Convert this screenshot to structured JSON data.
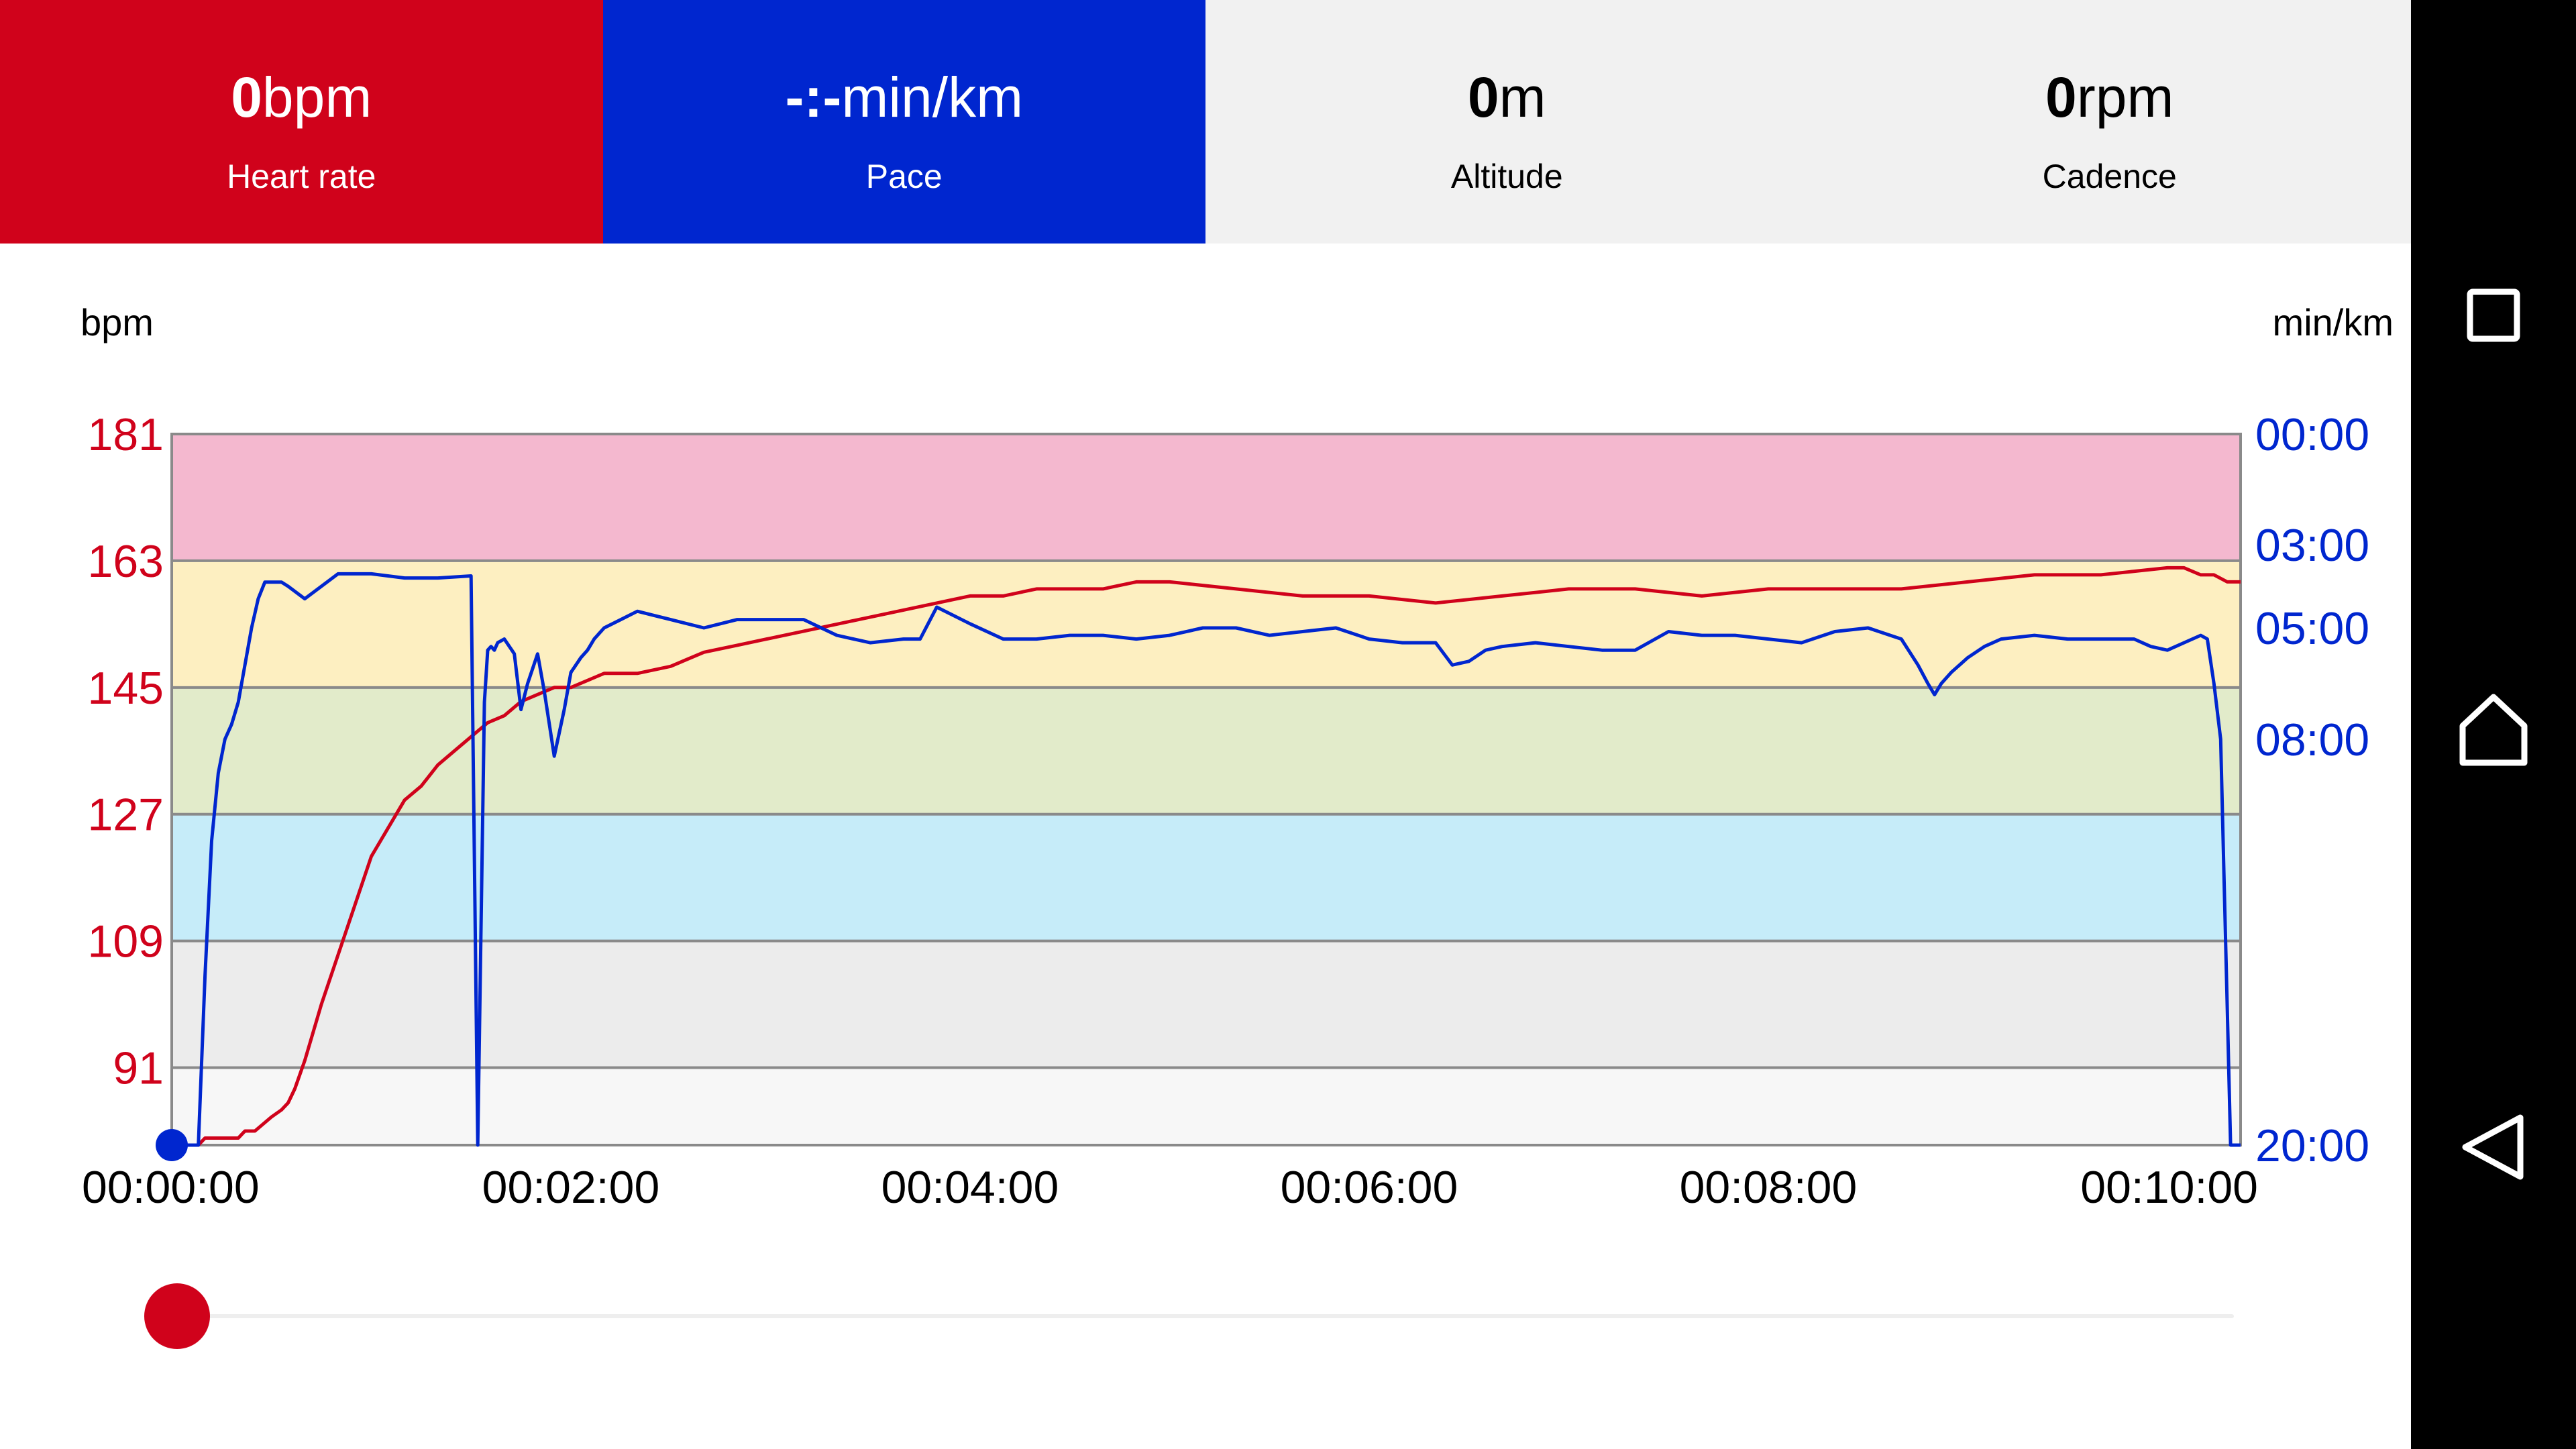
{
  "stats": {
    "heart_rate": {
      "value": "0",
      "unit": "bpm",
      "label": "Heart rate"
    },
    "pace": {
      "value": "-:-",
      "unit": "min/km",
      "label": "Pace"
    },
    "altitude": {
      "value": "0",
      "unit": "m",
      "label": "Altitude"
    },
    "cadence": {
      "value": "0",
      "unit": "rpm",
      "label": "Cadence"
    }
  },
  "colors": {
    "heart_rate": "#d0021b",
    "pace": "#0026cf",
    "zone_5": "#f4b8cf",
    "zone_4": "#fdefc1",
    "zone_3": "#e2ebca",
    "zone_2": "#c6ecf9",
    "zone_1": "#ececec",
    "zone_0": "#f7f7f7"
  },
  "chart_data": {
    "type": "line",
    "left_axis_unit": "bpm",
    "right_axis_unit": "min/km",
    "left_ticks": [
      "181",
      "163",
      "145",
      "127",
      "109",
      "91"
    ],
    "right_ticks": [
      "00:00",
      "03:00",
      "05:00",
      "08:00",
      "20:00"
    ],
    "x_ticks": [
      "00:00:00",
      "00:02:00",
      "00:04:00",
      "00:06:00",
      "00:08:00",
      "00:10:00"
    ],
    "xlim_seconds": [
      0,
      622
    ],
    "ylim_bpm": [
      80,
      181
    ],
    "zones_bpm": [
      181,
      163,
      145,
      127,
      109,
      91
    ],
    "series": [
      {
        "name": "Heart rate",
        "unit": "bpm",
        "x_seconds": [
          0,
          8,
          10,
          15,
          20,
          22,
          25,
          30,
          33,
          35,
          37,
          40,
          45,
          50,
          55,
          60,
          65,
          70,
          75,
          80,
          85,
          90,
          95,
          100,
          105,
          110,
          115,
          120,
          125,
          130,
          135,
          140,
          150,
          160,
          170,
          180,
          190,
          200,
          210,
          220,
          230,
          240,
          250,
          260,
          270,
          280,
          290,
          300,
          320,
          340,
          360,
          380,
          400,
          420,
          440,
          460,
          480,
          500,
          520,
          540,
          560,
          580,
          600,
          605,
          610,
          614,
          618,
          622
        ],
        "y": [
          80,
          80,
          81,
          81,
          81,
          82,
          82,
          84,
          85,
          86,
          88,
          92,
          100,
          107,
          114,
          121,
          125,
          129,
          131,
          134,
          136,
          138,
          140,
          141,
          143,
          144,
          145,
          145,
          146,
          147,
          147,
          147,
          148,
          150,
          151,
          152,
          153,
          154,
          155,
          156,
          157,
          158,
          158,
          159,
          159,
          159,
          160,
          160,
          159,
          158,
          158,
          157,
          158,
          159,
          159,
          158,
          159,
          159,
          159,
          160,
          161,
          161,
          162,
          162,
          161,
          161,
          160,
          160
        ]
      },
      {
        "name": "Pace",
        "unit": "min/km",
        "x_seconds": [
          0,
          8,
          10,
          12,
          14,
          16,
          18,
          20,
          24,
          26,
          28,
          30,
          33,
          35,
          40,
          45,
          50,
          55,
          60,
          65,
          70,
          80,
          90,
          92,
          94,
          95,
          96,
          97,
          98,
          100,
          103,
          105,
          107,
          110,
          112,
          115,
          118,
          120,
          123,
          125,
          127,
          130,
          135,
          140,
          145,
          150,
          160,
          170,
          180,
          190,
          200,
          210,
          220,
          225,
          230,
          240,
          250,
          260,
          270,
          280,
          290,
          300,
          310,
          320,
          330,
          340,
          350,
          360,
          370,
          380,
          385,
          390,
          395,
          400,
          410,
          420,
          430,
          440,
          450,
          460,
          470,
          480,
          490,
          500,
          510,
          520,
          525,
          528,
          530,
          532,
          535,
          540,
          545,
          550,
          560,
          570,
          580,
          590,
          595,
          600,
          605,
          610,
          612,
          614,
          616,
          617,
          618,
          619,
          620,
          622
        ],
        "y": [
          20,
          20,
          15,
          11,
          9,
          8,
          7.6,
          7,
          5,
          4.3,
          3.9,
          3.9,
          3.9,
          4.0,
          4.3,
          4.0,
          3.7,
          3.7,
          3.7,
          3.75,
          3.8,
          3.8,
          3.75,
          20,
          7,
          5.6,
          5.5,
          5.6,
          5.4,
          5.3,
          5.7,
          7.2,
          6.5,
          5.7,
          6.7,
          8.5,
          7.2,
          6.2,
          5.8,
          5.6,
          5.3,
          5.0,
          4.8,
          4.6,
          4.7,
          4.8,
          5.0,
          4.8,
          4.8,
          4.8,
          5.2,
          5.4,
          5.3,
          5.3,
          4.5,
          4.9,
          5.3,
          5.3,
          5.2,
          5.2,
          5.3,
          5.2,
          5.0,
          5.0,
          5.2,
          5.1,
          5.0,
          5.3,
          5.4,
          5.4,
          6.0,
          5.9,
          5.6,
          5.5,
          5.4,
          5.5,
          5.6,
          5.6,
          5.1,
          5.2,
          5.2,
          5.3,
          5.4,
          5.1,
          5.0,
          5.3,
          6.0,
          6.5,
          6.8,
          6.5,
          6.2,
          5.8,
          5.5,
          5.3,
          5.2,
          5.3,
          5.3,
          5.3,
          5.5,
          5.6,
          5.4,
          5.2,
          5.3,
          6.5,
          8.0,
          12,
          16,
          20,
          20,
          20
        ]
      }
    ]
  },
  "slider": {
    "position_fraction": 0.0
  },
  "navbar": {
    "items": [
      "recents-icon",
      "home-icon",
      "back-icon"
    ]
  }
}
